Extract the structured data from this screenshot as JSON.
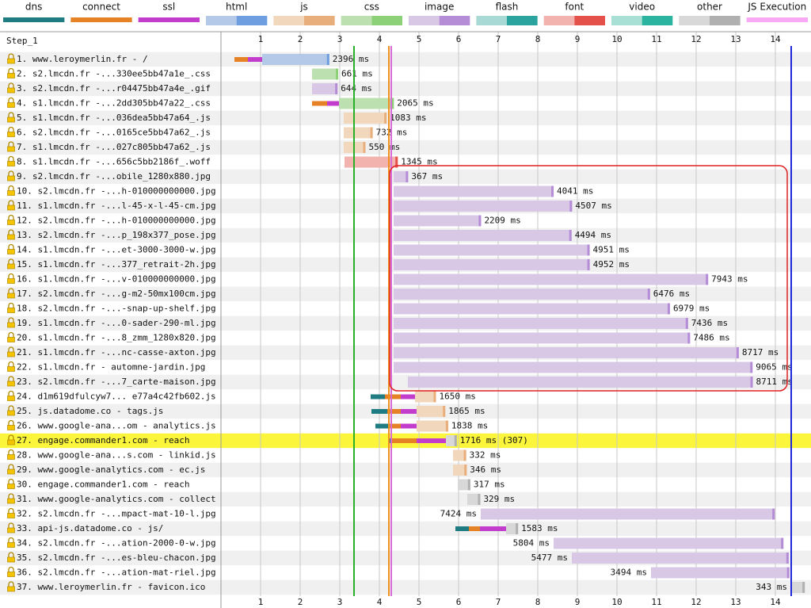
{
  "chart_data": {
    "type": "waterfall",
    "step": "Step_1",
    "legend": [
      {
        "name": "dns",
        "color": "#1f7c83"
      },
      {
        "name": "connect",
        "color": "#e58226"
      },
      {
        "name": "ssl",
        "color": "#c33dcd"
      },
      {
        "name": "html",
        "color": "#b4c9e8",
        "dark": "#6f9ee0"
      },
      {
        "name": "js",
        "color": "#f1d7bc",
        "dark": "#e8ae7b"
      },
      {
        "name": "css",
        "color": "#bde0b0",
        "dark": "#8cd177"
      },
      {
        "name": "image",
        "color": "#d8c8e6",
        "dark": "#b48dd6"
      },
      {
        "name": "flash",
        "color": "#a9d9d4",
        "dark": "#2ba4a0"
      },
      {
        "name": "font",
        "color": "#f2b2ae",
        "dark": "#e4504a"
      },
      {
        "name": "video",
        "color": "#a8e0d5",
        "dark": "#2bb5a0"
      },
      {
        "name": "other",
        "color": "#d8d8d8",
        "dark": "#b0b0b0"
      },
      {
        "name": "JS Execution",
        "color": "#f8a8f4"
      }
    ],
    "xlim": [
      0,
      14.8
    ],
    "xticks": [
      1,
      2,
      3,
      4,
      5,
      6,
      7,
      8,
      9,
      10,
      11,
      12,
      13,
      14
    ],
    "markers": [
      {
        "time": 3.36,
        "color": "#28b028"
      },
      {
        "time": 4.24,
        "color": "#f0901e"
      },
      {
        "time": 4.3,
        "color": "#d86ad8"
      },
      {
        "time": 14.4,
        "color": "#1e28d8"
      }
    ],
    "requests": [
      {
        "label": "1. www.leroymerlin.fr - /",
        "kind": "html",
        "start": 0.34,
        "duration": 2396,
        "duration_label": "2396 ms",
        "connect": 340,
        "ssl": 360
      },
      {
        "label": "2. s2.lmcdn.fr -...330ee5bb47a1e_.css",
        "kind": "css",
        "start": 2.3,
        "duration": 661,
        "duration_label": "661 ms"
      },
      {
        "label": "3. s2.lmcdn.fr -...r04475bb47a4e_.gif",
        "kind": "image",
        "start": 2.3,
        "duration": 644,
        "duration_label": "644 ms"
      },
      {
        "label": "4. s1.lmcdn.fr -...2dd305bb47a22_.css",
        "kind": "css",
        "start": 2.3,
        "duration": 2065,
        "duration_label": "2065 ms",
        "connect": 380,
        "ssl": 300
      },
      {
        "label": "5. s1.lmcdn.fr -...036dea5bb47a64_.js",
        "kind": "js",
        "start": 3.1,
        "duration": 1083,
        "duration_label": "1083 ms"
      },
      {
        "label": "6. s2.lmcdn.fr -...0165ce5bb47a62_.js",
        "kind": "js",
        "start": 3.1,
        "duration": 732,
        "duration_label": "732 ms"
      },
      {
        "label": "7. s1.lmcdn.fr -...027c805bb47a62_.js",
        "kind": "js",
        "start": 3.1,
        "duration": 550,
        "duration_label": "550 ms"
      },
      {
        "label": "8. s1.lmcdn.fr -...656c5bb2186f_.woff",
        "kind": "font",
        "start": 3.12,
        "duration": 1345,
        "duration_label": "1345 ms"
      },
      {
        "label": "9. s2.lmcdn.fr -...obile_1280x880.jpg",
        "kind": "image",
        "start": 4.36,
        "duration": 367,
        "duration_label": "367 ms"
      },
      {
        "label": "10. s2.lmcdn.fr -...h-010000000000.jpg",
        "kind": "image",
        "start": 4.36,
        "duration": 4041,
        "duration_label": "4041 ms"
      },
      {
        "label": "11. s1.lmcdn.fr -...l-45-x-l-45-cm.jpg",
        "kind": "image",
        "start": 4.36,
        "duration": 4507,
        "duration_label": "4507 ms"
      },
      {
        "label": "12. s2.lmcdn.fr -...h-010000000000.jpg",
        "kind": "image",
        "start": 4.36,
        "duration": 2209,
        "duration_label": "2209 ms"
      },
      {
        "label": "13. s2.lmcdn.fr -...p_198x377_pose.jpg",
        "kind": "image",
        "start": 4.36,
        "duration": 4494,
        "duration_label": "4494 ms"
      },
      {
        "label": "14. s1.lmcdn.fr -...et-3000-3000-w.jpg",
        "kind": "image",
        "start": 4.36,
        "duration": 4951,
        "duration_label": "4951 ms"
      },
      {
        "label": "15. s1.lmcdn.fr -...377_retrait-2h.jpg",
        "kind": "image",
        "start": 4.36,
        "duration": 4952,
        "duration_label": "4952 ms"
      },
      {
        "label": "16. s1.lmcdn.fr -...v-010000000000.jpg",
        "kind": "image",
        "start": 4.36,
        "duration": 7943,
        "duration_label": "7943 ms"
      },
      {
        "label": "17. s2.lmcdn.fr -...g-m2-50mx100cm.jpg",
        "kind": "image",
        "start": 4.36,
        "duration": 6476,
        "duration_label": "6476 ms"
      },
      {
        "label": "18. s2.lmcdn.fr -...-snap-up-shelf.jpg",
        "kind": "image",
        "start": 4.36,
        "duration": 6979,
        "duration_label": "6979 ms"
      },
      {
        "label": "19. s1.lmcdn.fr -...0-sader-290-ml.jpg",
        "kind": "image",
        "start": 4.36,
        "duration": 7436,
        "duration_label": "7436 ms"
      },
      {
        "label": "20. s1.lmcdn.fr -...8_zmm_1280x820.jpg",
        "kind": "image",
        "start": 4.36,
        "duration": 7486,
        "duration_label": "7486 ms"
      },
      {
        "label": "21. s1.lmcdn.fr -...nc-casse-axton.jpg",
        "kind": "image",
        "start": 4.36,
        "duration": 8717,
        "duration_label": "8717 ms"
      },
      {
        "label": "22. s1.lmcdn.fr - automne-jardin.jpg",
        "kind": "image",
        "start": 4.36,
        "duration": 9065,
        "duration_label": "9065 ms"
      },
      {
        "label": "23. s2.lmcdn.fr -...7_carte-maison.jpg",
        "kind": "image",
        "start": 4.72,
        "duration": 8711,
        "duration_label": "8711 ms"
      },
      {
        "label": "24. d1m619dfulcyw7... e77a4c42fb602.js",
        "kind": "js",
        "start": 3.78,
        "duration": 1650,
        "duration_label": "1650 ms",
        "dns": 360,
        "connect": 400,
        "ssl": 360
      },
      {
        "label": "25. js.datadome.co - tags.js",
        "kind": "js",
        "start": 3.8,
        "duration": 1865,
        "duration_label": "1865 ms",
        "dns": 400,
        "connect": 340,
        "ssl": 400
      },
      {
        "label": "26. www.google-ana...om - analytics.js",
        "kind": "js",
        "start": 3.9,
        "duration": 1838,
        "duration_label": "1838 ms",
        "dns": 340,
        "connect": 300,
        "ssl": 400
      },
      {
        "label": "27. engage.commander1.com - reach",
        "kind": "other",
        "start": 4.24,
        "duration": 1716,
        "duration_label": "1716 ms (307)",
        "dns": 60,
        "connect": 640,
        "ssl": 740,
        "highlight": true
      },
      {
        "label": "28. www.google-ana...s.com - linkid.js",
        "kind": "js",
        "start": 5.86,
        "duration": 332,
        "duration_label": "332 ms"
      },
      {
        "label": "29. www.google-analytics.com - ec.js",
        "kind": "js",
        "start": 5.86,
        "duration": 346,
        "duration_label": "346 ms"
      },
      {
        "label": "30. engage.commander1.com - reach",
        "kind": "other",
        "start": 5.98,
        "duration": 317,
        "duration_label": "317 ms"
      },
      {
        "label": "31. www.google-analytics.com - collect",
        "kind": "other",
        "start": 6.22,
        "duration": 329,
        "duration_label": "329 ms"
      },
      {
        "label": "32. s2.lmcdn.fr -...mpact-mat-10-l.jpg",
        "kind": "image",
        "start": 6.56,
        "duration": 7424,
        "duration_label": "7424 ms"
      },
      {
        "label": "33. api-js.datadome.co - js/",
        "kind": "other",
        "start": 5.92,
        "duration": 1583,
        "duration_label": "1583 ms",
        "dns": 340,
        "connect": 280,
        "ssl": 660
      },
      {
        "label": "34. s2.lmcdn.fr -...ation-2000-0-w.jpg",
        "kind": "image",
        "start": 8.4,
        "duration": 5804,
        "duration_label": "5804 ms"
      },
      {
        "label": "35. s2.lmcdn.fr -...es-bleu-chacon.jpg",
        "kind": "image",
        "start": 8.86,
        "duration": 5477,
        "duration_label": "5477 ms"
      },
      {
        "label": "36. s2.lmcdn.fr -...ation-mat-riel.jpg",
        "kind": "image",
        "start": 10.86,
        "duration": 3494,
        "duration_label": "3494 ms"
      },
      {
        "label": "37. www.leroymerlin.fr - favicon.ico",
        "kind": "other",
        "start": 14.4,
        "duration": 343,
        "duration_label": "343 ms"
      }
    ]
  }
}
